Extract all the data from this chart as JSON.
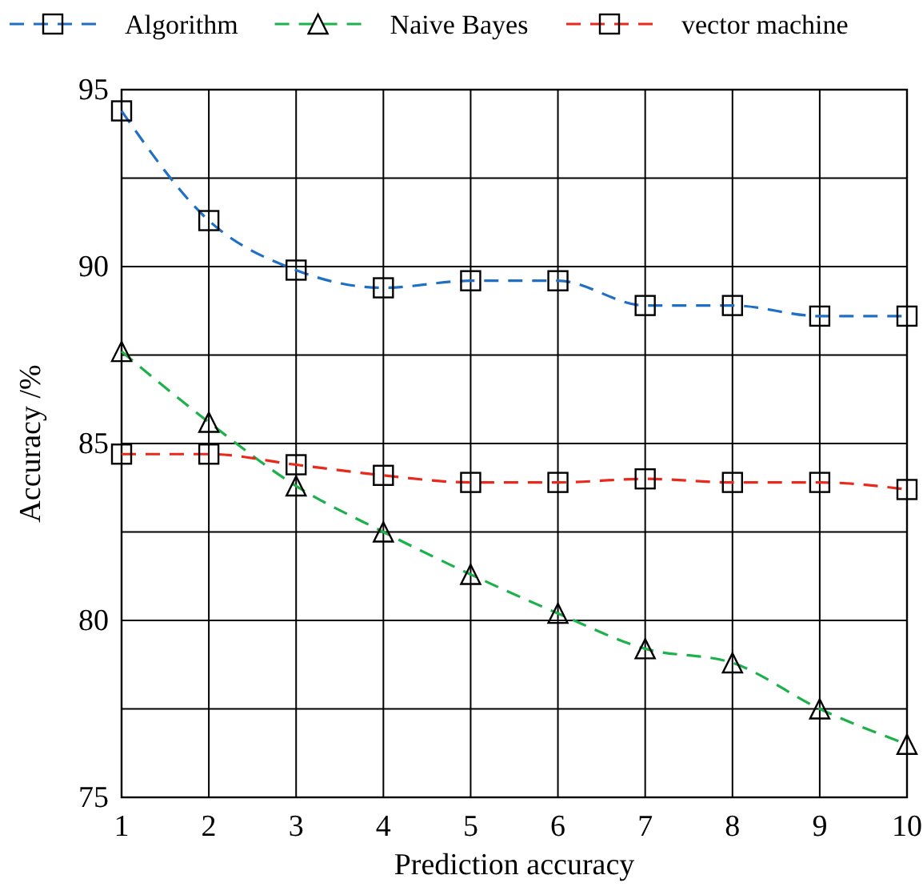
{
  "chart_data": {
    "type": "line",
    "xlabel": "Prediction accuracy",
    "ylabel": "Accuracy /%",
    "x": [
      1,
      2,
      3,
      4,
      5,
      6,
      7,
      8,
      9,
      10
    ],
    "xlim": [
      1,
      10
    ],
    "xticks": [
      1,
      2,
      3,
      4,
      5,
      6,
      7,
      8,
      9,
      10
    ],
    "ylim": [
      75,
      95
    ],
    "yticks": [
      75,
      {
        "value": 77.5,
        "label": null
      },
      80,
      {
        "value": 82.5,
        "label": null
      },
      85,
      {
        "value": 87.5,
        "label": null
      },
      90,
      {
        "value": 92.5,
        "label": null
      },
      95
    ],
    "grid": true,
    "legend": "top",
    "line_style": "dashed",
    "series": [
      {
        "name": "Algorithm",
        "color": "#1f6fc4",
        "marker": "square",
        "values": [
          94.4,
          91.3,
          89.9,
          89.4,
          89.6,
          89.6,
          88.9,
          88.9,
          88.6,
          88.6
        ]
      },
      {
        "name": "Naive Bayes",
        "color": "#1db14b",
        "marker": "triangle",
        "values": [
          87.6,
          85.6,
          83.8,
          82.5,
          81.3,
          80.2,
          79.2,
          78.8,
          77.5,
          76.5
        ]
      },
      {
        "name": "vector machine",
        "color": "#e8291c",
        "marker": "square",
        "values": [
          84.7,
          84.7,
          84.4,
          84.1,
          83.9,
          83.9,
          84.0,
          83.9,
          83.9,
          83.7
        ]
      }
    ]
  }
}
